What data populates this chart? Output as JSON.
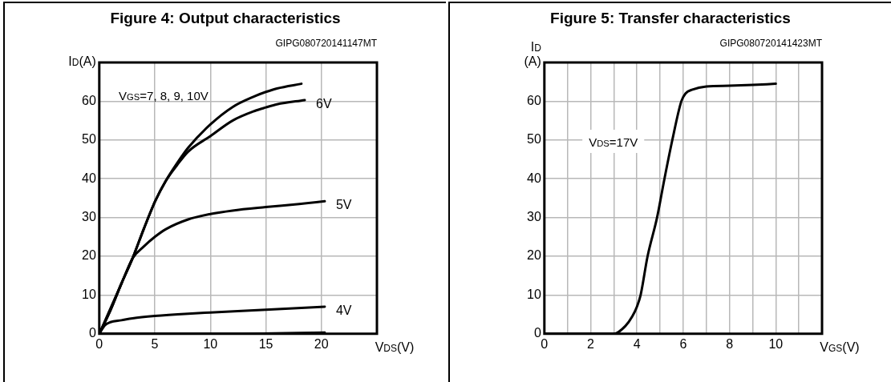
{
  "chart_data": [
    {
      "type": "line",
      "title": "Figure 4: Output characteristics",
      "xlabel": "V$_{DS}$(V)",
      "ylabel": "I$_{D}$(A)",
      "xlim": [
        0,
        25
      ],
      "ylim": [
        0,
        70
      ],
      "xticks": [
        0,
        5,
        10,
        15,
        20
      ],
      "yticks": [
        0,
        10,
        20,
        30,
        40,
        50,
        60
      ],
      "grid": true,
      "legend": false,
      "marker": "none",
      "line_style": "solid",
      "annotations": [
        "GIPG080720141147MT",
        "V$_{GS}$=7, 8, 9, 10V"
      ],
      "series": [
        {
          "color": "#000000",
          "x": [
            0,
            1,
            2,
            3,
            4,
            5,
            6,
            7,
            8,
            10,
            12,
            14,
            15,
            16,
            18.2
          ],
          "values": [
            0,
            6,
            13,
            19.5,
            27,
            34,
            39.5,
            44,
            48,
            54,
            58.5,
            61.3,
            62.4,
            63.3,
            64.5
          ]
        },
        {
          "name": "6V",
          "color": "#000000",
          "x": [
            0,
            1,
            2,
            3,
            4,
            5,
            6,
            7,
            8,
            10,
            12,
            14,
            15,
            16,
            18.5
          ],
          "values": [
            0,
            6,
            13,
            19.5,
            27,
            34,
            39.5,
            43.5,
            47,
            51,
            55,
            57.5,
            58.4,
            59.2,
            60.3
          ]
        },
        {
          "name": "5V",
          "color": "#000000",
          "x": [
            0,
            1,
            2,
            3,
            4,
            5,
            6,
            8,
            10,
            12,
            15,
            18,
            20.3
          ],
          "values": [
            0,
            6.5,
            13,
            19.5,
            22.5,
            25,
            27,
            29.5,
            30.9,
            31.8,
            32.7,
            33.5,
            34.2
          ]
        },
        {
          "name": "4V",
          "color": "#000000",
          "x": [
            0,
            0.5,
            1,
            2,
            3,
            5,
            8,
            10,
            15,
            20.3
          ],
          "values": [
            0,
            2.2,
            3,
            3.5,
            4,
            4.6,
            5.2,
            5.5,
            6.2,
            7
          ]
        },
        {
          "color": "#000000",
          "x": [
            0,
            10,
            20.3
          ],
          "values": [
            0,
            0,
            0.3
          ]
        }
      ]
    },
    {
      "type": "line",
      "title": "Figure 5: Transfer characteristics",
      "xlabel": "V$_{GS}$(V)",
      "ylabel": "I$_{D}$ (A)",
      "xlim": [
        0,
        12
      ],
      "ylim": [
        0,
        70
      ],
      "xticks": [
        0,
        {
          "value": 1,
          "label": null
        },
        2,
        {
          "value": 3,
          "label": null
        },
        4,
        {
          "value": 5,
          "label": null
        },
        6,
        {
          "value": 7,
          "label": null
        },
        8,
        {
          "value": 9,
          "label": null
        },
        10,
        {
          "value": 11,
          "label": null
        }
      ],
      "yticks": [
        0,
        10,
        20,
        30,
        40,
        50,
        60
      ],
      "grid": true,
      "legend": false,
      "marker": "none",
      "line_style": "solid",
      "annotations": [
        "GIPG080720141423MT",
        "V$_{DS}$=17V"
      ],
      "series": [
        {
          "color": "#000000",
          "x": [
            0,
            2.2,
            3,
            3.5,
            3.8,
            4,
            4.16,
            4.46,
            4.87,
            5.19,
            5.53,
            5.92,
            6.1,
            6.4,
            7,
            8,
            9,
            10
          ],
          "values": [
            0,
            0,
            0,
            2,
            4.5,
            7,
            10,
            20,
            30,
            40,
            50,
            60,
            62,
            63,
            63.8,
            64,
            64.2,
            64.5
          ]
        }
      ]
    }
  ]
}
